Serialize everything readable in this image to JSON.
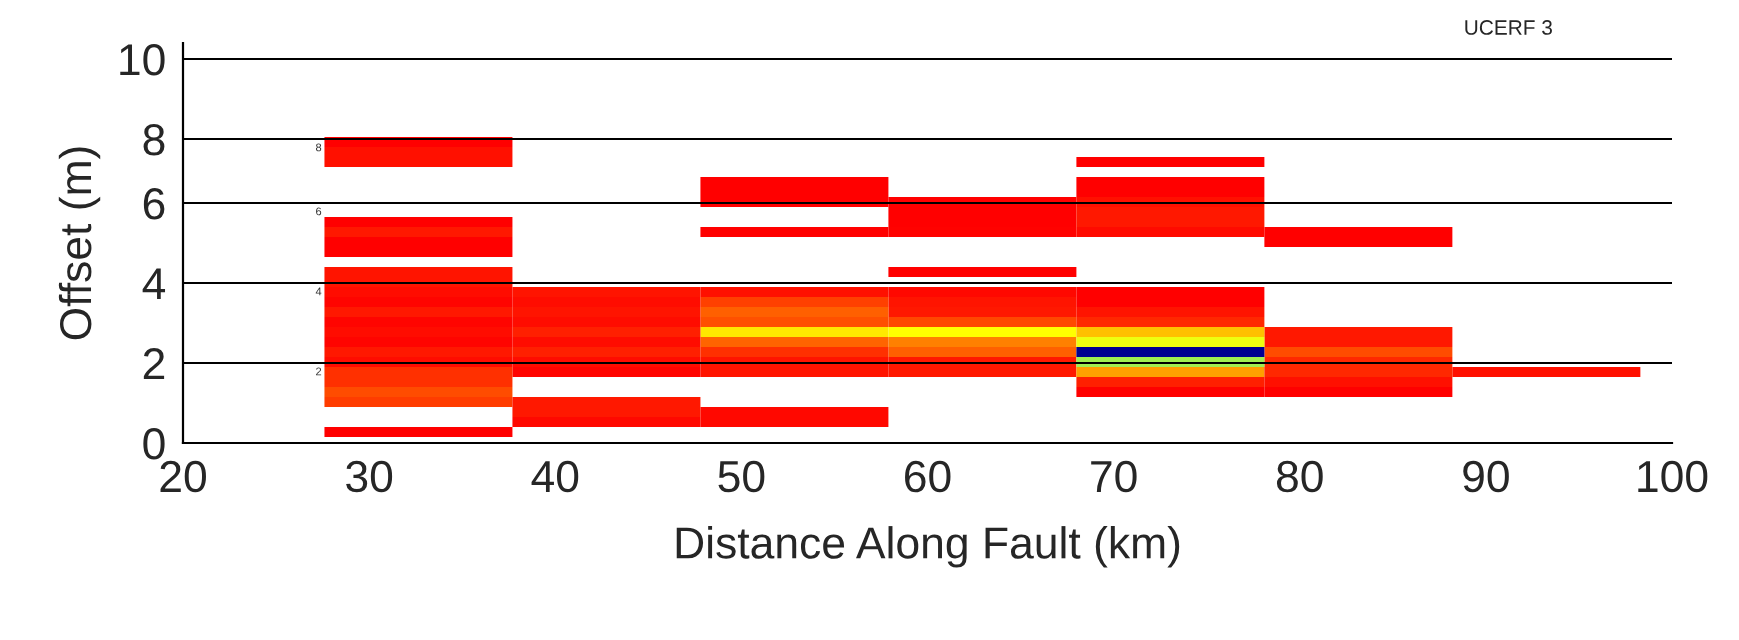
{
  "chart_data": {
    "type": "bar",
    "title": "UCERF 3",
    "xlabel": "Distance Along Fault (km)",
    "ylabel": "Offset (m)",
    "x": [
      32.65,
      42.75,
      52.85,
      62.95,
      73.05,
      83.15,
      93.25
    ],
    "xlim": [
      20,
      100
    ],
    "xticks": [
      20,
      30,
      40,
      50,
      60,
      70,
      80,
      90,
      100
    ],
    "ylim": [
      0,
      10
    ],
    "yticks": [
      0,
      2,
      4,
      6,
      {
        "value": 7.6,
        "label": "8"
      },
      {
        "value": 9.6,
        "label": "10"
      }
    ],
    "grid": "y",
    "annotations": [
      "8",
      "6",
      "4",
      "2"
    ],
    "series": [
      {
        "base": [
          0.15,
          0.4,
          0.4,
          1.65,
          1.15,
          1.15,
          1.65
        ],
        "values": [
          0.25,
          0.25,
          0.5,
          0.5,
          0.25,
          0.25,
          0.25
        ],
        "colors": [
          "#ff0000",
          "#ff0800",
          "#ff0800",
          "#ff1800",
          "#ff0000",
          "#ff0000",
          "#ff1000"
        ]
      },
      {
        "base": [
          0.9,
          0.65,
          1.65,
          2.15,
          1.4,
          1.4,
          null
        ],
        "values": [
          0.25,
          0.5,
          0.5,
          0.25,
          0.25,
          0.25,
          null
        ],
        "colors": [
          "#ff3c00",
          "#ff1800",
          "#ff1400",
          "#ff6000",
          "#ff2000",
          "#ff1000",
          null
        ]
      },
      {
        "base": [
          1.15,
          1.65,
          2.15,
          2.4,
          1.65,
          1.65,
          null
        ],
        "values": [
          0.25,
          0.25,
          0.25,
          0.25,
          0.25,
          0.5,
          null
        ],
        "colors": [
          "#ff4c00",
          "#ff0400",
          "#ff3000",
          "#ff8000",
          "#ffa000",
          "#ff2800",
          null
        ]
      },
      {
        "base": [
          1.4,
          1.9,
          2.4,
          2.65,
          1.9,
          2.15,
          null
        ],
        "values": [
          0.5,
          0.25,
          0.25,
          0.25,
          0.25,
          0.25,
          null
        ],
        "colors": [
          "#ff3000",
          "#ff0c00",
          "#ff6400",
          "#ffff00",
          "#a0f050",
          "#ff4c00",
          null
        ]
      },
      {
        "base": [
          1.9,
          2.15,
          2.65,
          2.9,
          2.15,
          2.4,
          null
        ],
        "values": [
          0.25,
          0.25,
          0.25,
          0.25,
          0.25,
          0.5,
          null
        ],
        "colors": [
          "#ff0c00",
          "#ff2000",
          "#ffe800",
          "#ff4800",
          "#000090",
          "#ff1800",
          null
        ]
      },
      {
        "base": [
          2.15,
          2.4,
          2.9,
          3.15,
          2.4,
          4.9,
          null
        ],
        "values": [
          0.25,
          0.25,
          0.25,
          0.25,
          0.25,
          0.5,
          null
        ],
        "colors": [
          "#ff1800",
          "#ff0c00",
          "#ff5000",
          "#ff1800",
          "#eeff10",
          "#ff0000",
          null
        ]
      },
      {
        "base": [
          2.4,
          2.65,
          3.15,
          3.4,
          2.65,
          null,
          null
        ],
        "values": [
          0.25,
          0.25,
          0.25,
          0.25,
          0.25,
          null,
          null
        ],
        "colors": [
          "#ff0400",
          "#ff2000",
          "#ff6000",
          "#ff1400",
          "#ffc000",
          null,
          null
        ]
      },
      {
        "base": [
          2.65,
          2.9,
          3.4,
          3.65,
          2.9,
          null,
          null
        ],
        "values": [
          0.25,
          0.25,
          0.25,
          0.25,
          0.25,
          null,
          null
        ],
        "colors": [
          "#ff0c00",
          "#ff0c00",
          "#ff4000",
          "#ff0800",
          "#ff2800",
          null,
          null
        ]
      },
      {
        "base": [
          2.9,
          3.15,
          3.65,
          4.15,
          3.15,
          null,
          null
        ],
        "values": [
          0.25,
          0.25,
          0.25,
          0.25,
          0.25,
          null,
          null
        ],
        "colors": [
          "#ff0400",
          "#ff1400",
          "#ff1000",
          "#ff0000",
          "#ff1400",
          null,
          null
        ]
      },
      {
        "base": [
          3.15,
          3.4,
          5.15,
          5.15,
          3.4,
          null,
          null
        ],
        "values": [
          0.25,
          0.25,
          0.25,
          0.25,
          0.5,
          null,
          null
        ],
        "colors": [
          "#ff1800",
          "#ff0c00",
          "#ff0000",
          "#ff0200",
          "#ff0000",
          null,
          null
        ]
      },
      {
        "base": [
          3.4,
          3.65,
          5.9,
          5.4,
          5.15,
          null,
          null
        ],
        "values": [
          0.25,
          0.25,
          0.75,
          0.75,
          0.25,
          null,
          null
        ],
        "colors": [
          "#ff0400",
          "#ff1400",
          "#ff0000",
          "#ff0000",
          "#ff0a00",
          null,
          null
        ]
      },
      {
        "base": [
          3.65,
          null,
          null,
          null,
          5.4,
          null,
          null
        ],
        "values": [
          0.25,
          null,
          null,
          null,
          0.5,
          null,
          null
        ],
        "colors": [
          "#ff0c00",
          null,
          null,
          null,
          "#ff1800",
          null,
          null
        ]
      },
      {
        "base": [
          3.9,
          null,
          null,
          null,
          5.9,
          null,
          null
        ],
        "values": [
          0.5,
          null,
          null,
          null,
          0.25,
          null,
          null
        ],
        "colors": [
          "#ff1400",
          null,
          null,
          null,
          "#ff1000",
          null,
          null
        ]
      },
      {
        "base": [
          4.65,
          null,
          null,
          null,
          6.15,
          null,
          null
        ],
        "values": [
          0.5,
          null,
          null,
          null,
          0.5,
          null,
          null
        ],
        "colors": [
          "#ff0000",
          null,
          null,
          null,
          "#ff0000",
          null,
          null
        ]
      },
      {
        "base": [
          5.15,
          null,
          null,
          null,
          6.9,
          null,
          null
        ],
        "values": [
          0.25,
          null,
          null,
          null,
          0.25,
          null,
          null
        ],
        "colors": [
          "#ff1800",
          null,
          null,
          null,
          "#ff0000",
          null,
          null
        ]
      },
      {
        "base": [
          5.4,
          null,
          null,
          null,
          null,
          null,
          null
        ],
        "values": [
          0.25,
          null,
          null,
          null,
          null,
          null,
          null
        ],
        "colors": [
          "#ff0000",
          null,
          null,
          null,
          null,
          null,
          null
        ]
      },
      {
        "base": [
          6.9,
          null,
          null,
          null,
          null,
          null,
          null
        ],
        "values": [
          0.5,
          null,
          null,
          null,
          null,
          null,
          null
        ],
        "colors": [
          "#ff1000",
          null,
          null,
          null,
          null,
          null,
          null
        ]
      },
      {
        "base": [
          7.4,
          null,
          null,
          null,
          null,
          null,
          null
        ],
        "values": [
          0.25,
          null,
          null,
          null,
          null,
          null,
          null
        ],
        "colors": [
          "#ff0000",
          null,
          null,
          null,
          null,
          null,
          null
        ]
      }
    ]
  }
}
